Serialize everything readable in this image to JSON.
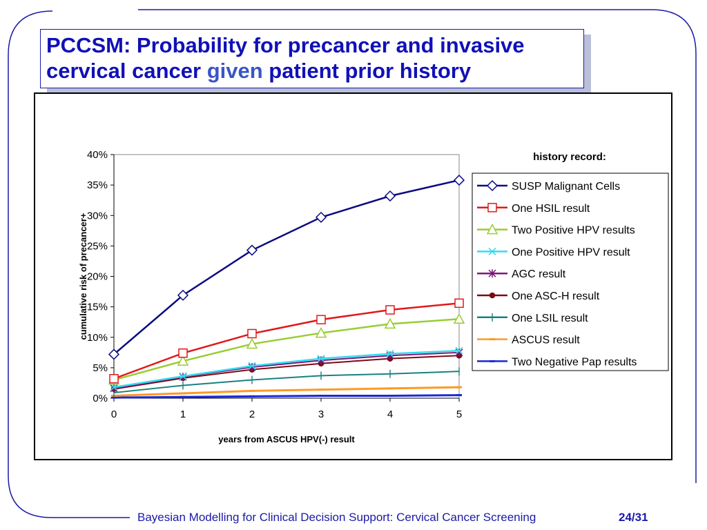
{
  "slide": {
    "title_part1": "PCCSM: Probability for precancer and invasive cervical cancer ",
    "title_given": "given",
    "title_part2": " patient prior history",
    "footer": "Bayesian Modelling for Clinical Decision Support: Cervical Cancer Screening",
    "page": "24/31",
    "colors": {
      "title": "#1010b8",
      "frame": "#1a1aa8",
      "shadow": "#b9bfd8"
    }
  },
  "chart_data": {
    "type": "line",
    "title": "",
    "xlabel": "years from  ASCUS HPV(-) result",
    "ylabel": "cumulative risk of precancer+",
    "x": [
      0,
      1,
      2,
      3,
      4,
      5
    ],
    "x_ticks": [
      "0",
      "1",
      "2",
      "3",
      "4",
      "5"
    ],
    "ylim": [
      0,
      0.4
    ],
    "y_ticks": [
      "0%",
      "5%",
      "10%",
      "15%",
      "20%",
      "25%",
      "30%",
      "35%",
      "40%"
    ],
    "grid": false,
    "legend_title": "history record:",
    "legend_position": "right",
    "series": [
      {
        "name": "SUSP Malignant Cells",
        "color": "#0a0a80",
        "marker": "diamond",
        "values": [
          0.072,
          0.169,
          0.243,
          0.297,
          0.332,
          0.358
        ]
      },
      {
        "name": "One HSIL result",
        "color": "#e01818",
        "marker": "square",
        "values": [
          0.032,
          0.074,
          0.106,
          0.129,
          0.145,
          0.156
        ]
      },
      {
        "name": "Two Positive HPV results",
        "color": "#99cc33",
        "marker": "triangle",
        "values": [
          0.03,
          0.061,
          0.089,
          0.107,
          0.122,
          0.13
        ]
      },
      {
        "name": "One Positive HPV result",
        "color": "#33ddee",
        "marker": "x",
        "values": [
          0.018,
          0.036,
          0.053,
          0.065,
          0.073,
          0.078
        ]
      },
      {
        "name": "AGC result",
        "color": "#7a1a7a",
        "marker": "star",
        "values": [
          0.016,
          0.035,
          0.051,
          0.062,
          0.07,
          0.075
        ]
      },
      {
        "name": "One ASC-H result",
        "color": "#7a0a14",
        "marker": "circle",
        "values": [
          0.015,
          0.033,
          0.047,
          0.057,
          0.065,
          0.07
        ]
      },
      {
        "name": "One LSIL result",
        "color": "#1a8080",
        "marker": "plus",
        "values": [
          0.009,
          0.021,
          0.03,
          0.037,
          0.04,
          0.044
        ]
      },
      {
        "name": "ASCUS result",
        "color": "#ff9922",
        "marker": "dash",
        "values": [
          0.004,
          0.008,
          0.012,
          0.014,
          0.016,
          0.018
        ]
      },
      {
        "name": "Two Negative Pap results",
        "color": "#1a28d8",
        "marker": "dash",
        "values": [
          0.001,
          0.002,
          0.003,
          0.004,
          0.004,
          0.005
        ]
      }
    ]
  }
}
